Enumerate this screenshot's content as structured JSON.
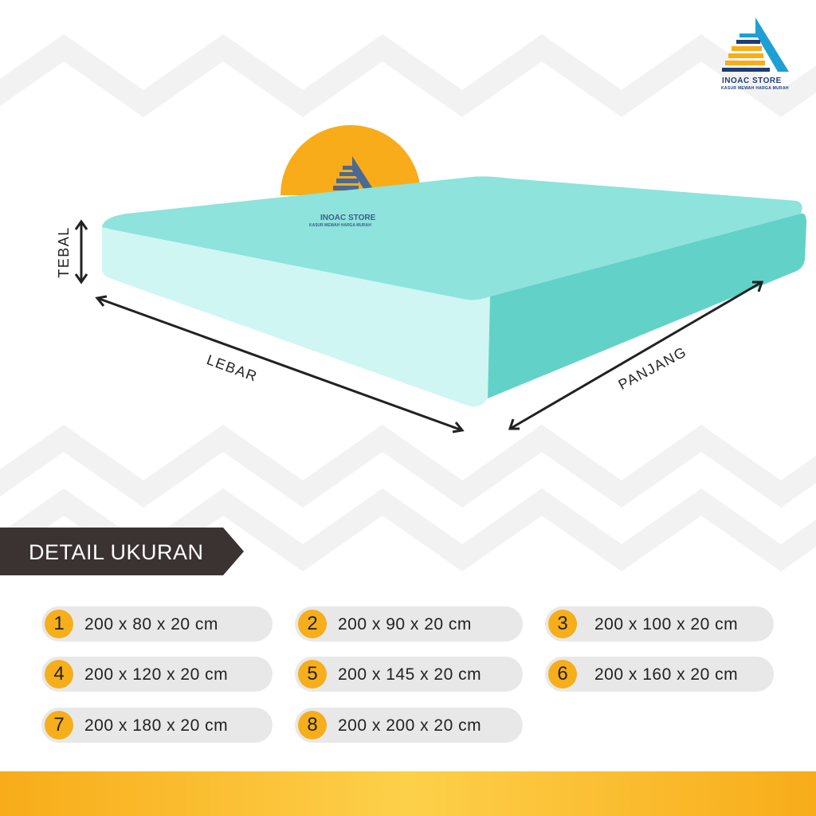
{
  "brand": {
    "name": "INOAC STORE",
    "tagline": "KASUR MEWAH HARGA MURAH"
  },
  "dimensions": {
    "thickness": "TEBAL",
    "width": "LEBAR",
    "length": "PANJANG"
  },
  "section_title": "DETAIL UKURAN",
  "sizes": [
    {
      "num": "1",
      "label": "200 x 80 x 20 cm"
    },
    {
      "num": "2",
      "label": "200 x 90 x 20 cm"
    },
    {
      "num": "3",
      "label": "200 x 100 x 20 cm"
    },
    {
      "num": "4",
      "label": "200 x 120 x 20 cm"
    },
    {
      "num": "5",
      "label": "200 x 145 x 20 cm"
    },
    {
      "num": "6",
      "label": "200 x 160 x 20 cm"
    },
    {
      "num": "7",
      "label": "200 x 180 x 20 cm"
    },
    {
      "num": "8",
      "label": "200 x 200 x 20 cm"
    }
  ],
  "colors": {
    "accent": "#f6ae1a",
    "mattress": "#8fe3dc",
    "header": "#3a3332",
    "brand": "#1f3b77"
  },
  "icons": {
    "logo": "triangle-stripes-logo",
    "arrows": "double-headed-arrow"
  }
}
